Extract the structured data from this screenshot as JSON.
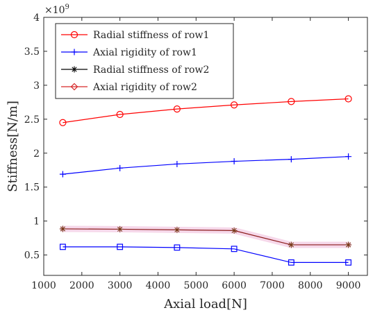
{
  "chart_data": {
    "type": "line",
    "xlabel": "Axial load[N]",
    "ylabel": "Stiffness[N/m]",
    "y_exponent_label": "×10",
    "y_exponent_power": "9",
    "xlim": [
      1000,
      9500
    ],
    "ylim": [
      0.2,
      4.0
    ],
    "xticks": [
      1000,
      2000,
      3000,
      4000,
      5000,
      6000,
      7000,
      8000,
      9000
    ],
    "xtick_labels": [
      "1000",
      "2000",
      "3000",
      "4000",
      "5000",
      "6000",
      "7000",
      "8000",
      "9000"
    ],
    "yticks": [
      0.5,
      1.0,
      1.5,
      2.0,
      2.5,
      3.0,
      3.5,
      4.0
    ],
    "ytick_labels": [
      "0.5",
      "1",
      "1.5",
      "2",
      "2.5",
      "3",
      "3.5",
      "4"
    ],
    "grid": false,
    "legend_position": "top-left",
    "x": [
      1500,
      3000,
      4500,
      6000,
      7500,
      9000
    ],
    "series": [
      {
        "name": "Radial stiffness of row1",
        "values": [
          2.45,
          2.57,
          2.65,
          2.71,
          2.76,
          2.8
        ],
        "color": "#ff0000",
        "marker": "circle",
        "in_legend": true,
        "legend_marker": "circle"
      },
      {
        "name": "Axial rigidity of row1",
        "values": [
          1.69,
          1.78,
          1.84,
          1.88,
          1.91,
          1.95
        ],
        "color": "#0000ff",
        "marker": "plus",
        "in_legend": true,
        "legend_marker": "plus"
      },
      {
        "name": "Radial stiffness of row2",
        "values": [
          0.885,
          0.88,
          0.87,
          0.86,
          0.65,
          0.65
        ],
        "color": "#8b1a1a",
        "marker": "star",
        "marker_color": "#7a3a1a",
        "highlight": "#f6d8ea",
        "in_legend": true,
        "legend_marker": "star",
        "legend_color": "#000000"
      },
      {
        "name": "Axial rigidity of row2",
        "values": [
          0.62,
          0.62,
          0.61,
          0.59,
          0.39,
          0.39
        ],
        "color": "#0000ff",
        "marker": "square",
        "in_legend": true,
        "legend_color": "#d62728",
        "legend_marker": "diamond"
      }
    ]
  }
}
